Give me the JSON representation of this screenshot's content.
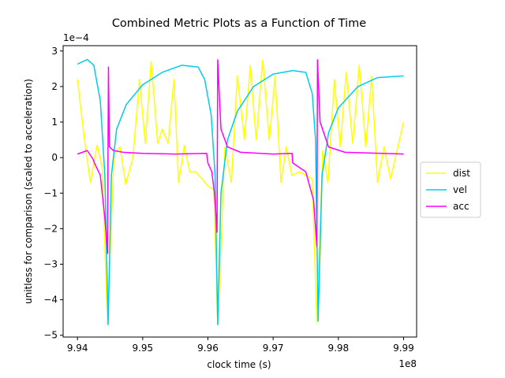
{
  "chart_data": {
    "type": "line",
    "title": "Combined Metric Plots as a Function of Time",
    "xlabel": "clock time (s)",
    "ylabel": "unitless for comparison (scaled to acceleration)",
    "x_offset_label": "1e8",
    "y_offset_label": "1e−4",
    "xlim": [
      993780000,
      999200000
    ],
    "ylim": [
      -5.05,
      3.15
    ],
    "x_ticks": [
      994000000,
      995000000,
      996000000,
      997000000,
      998000000,
      999000000
    ],
    "x_tick_labels": [
      "9.94",
      "9.95",
      "9.96",
      "9.97",
      "9.98",
      "9.99"
    ],
    "y_ticks": [
      3,
      2,
      1,
      0,
      -1,
      -2,
      -3,
      -4,
      -5
    ],
    "y_tick_labels": [
      "3",
      "2",
      "1",
      "0",
      "−1",
      "−2",
      "−3",
      "−4",
      "−5"
    ],
    "grid": false,
    "legend_placement": "center-right-outside",
    "series": [
      {
        "name": "dist",
        "color": "#ffff00",
        "points": [
          [
            994000000,
            2.2
          ],
          [
            994120000,
            0.3
          ],
          [
            994200000,
            -0.7
          ],
          [
            994300000,
            0.35
          ],
          [
            994380000,
            -0.3
          ],
          [
            994460000,
            -4.7
          ],
          [
            994560000,
            0.1
          ],
          [
            994650000,
            0.3
          ],
          [
            994740000,
            -0.75
          ],
          [
            994850000,
            0.0
          ],
          [
            994950000,
            2.2
          ],
          [
            995040000,
            0.4
          ],
          [
            995130000,
            2.7
          ],
          [
            995230000,
            0.4
          ],
          [
            995300000,
            0.8
          ],
          [
            995390000,
            0.4
          ],
          [
            995480000,
            2.2
          ],
          [
            995550000,
            -0.7
          ],
          [
            995640000,
            0.35
          ],
          [
            995720000,
            -0.4
          ],
          [
            995810000,
            -0.4
          ],
          [
            995910000,
            -0.6
          ],
          [
            996000000,
            -0.8
          ],
          [
            996090000,
            -0.9
          ],
          [
            996150000,
            -4.7
          ],
          [
            996260000,
            0.3
          ],
          [
            996360000,
            -0.7
          ],
          [
            996450000,
            2.3
          ],
          [
            996560000,
            0.5
          ],
          [
            996650000,
            2.6
          ],
          [
            996740000,
            0.5
          ],
          [
            996840000,
            2.75
          ],
          [
            996940000,
            0.5
          ],
          [
            997030000,
            2.3
          ],
          [
            997120000,
            -0.7
          ],
          [
            997200000,
            0.3
          ],
          [
            997290000,
            -0.5
          ],
          [
            997400000,
            -0.4
          ],
          [
            997500000,
            -0.5
          ],
          [
            997600000,
            -0.6
          ],
          [
            997670000,
            -4.65
          ],
          [
            997760000,
            0.2
          ],
          [
            997840000,
            -0.7
          ],
          [
            997940000,
            2.2
          ],
          [
            998030000,
            0.3
          ],
          [
            998120000,
            2.4
          ],
          [
            998220000,
            0.4
          ],
          [
            998320000,
            2.6
          ],
          [
            998420000,
            0.3
          ],
          [
            998510000,
            2.3
          ],
          [
            998600000,
            -0.7
          ],
          [
            998700000,
            0.3
          ],
          [
            998800000,
            -0.6
          ],
          [
            998900000,
            0.2
          ],
          [
            999000000,
            1.0
          ]
        ]
      },
      {
        "name": "vel",
        "color": "#00ccee",
        "points": [
          [
            994000000,
            2.63
          ],
          [
            994150000,
            2.76
          ],
          [
            994250000,
            2.6
          ],
          [
            994350000,
            1.6
          ],
          [
            994420000,
            -0.5
          ],
          [
            994470000,
            -4.7
          ],
          [
            994520000,
            -0.5
          ],
          [
            994600000,
            0.8
          ],
          [
            994750000,
            1.5
          ],
          [
            995000000,
            2.05
          ],
          [
            995300000,
            2.4
          ],
          [
            995600000,
            2.6
          ],
          [
            995850000,
            2.55
          ],
          [
            995950000,
            2.2
          ],
          [
            996050000,
            1.2
          ],
          [
            996110000,
            -0.5
          ],
          [
            996150000,
            -4.7
          ],
          [
            996200000,
            -1.0
          ],
          [
            996300000,
            0.5
          ],
          [
            996450000,
            1.3
          ],
          [
            996700000,
            2.0
          ],
          [
            997000000,
            2.35
          ],
          [
            997300000,
            2.45
          ],
          [
            997500000,
            2.4
          ],
          [
            997600000,
            1.8
          ],
          [
            997650000,
            0.5
          ],
          [
            997690000,
            -4.6
          ],
          [
            997750000,
            -0.5
          ],
          [
            997850000,
            0.7
          ],
          [
            998000000,
            1.4
          ],
          [
            998300000,
            2.0
          ],
          [
            998600000,
            2.25
          ],
          [
            999000000,
            2.3
          ]
        ]
      },
      {
        "name": "acc",
        "color": "#ff00ff",
        "points": [
          [
            994000000,
            0.1
          ],
          [
            994150000,
            0.2
          ],
          [
            994240000,
            -0.05
          ],
          [
            994260000,
            -0.15
          ],
          [
            994350000,
            -0.5
          ],
          [
            994420000,
            -1.7
          ],
          [
            994460000,
            -2.7
          ],
          [
            994475000,
            2.55
          ],
          [
            994490000,
            0.3
          ],
          [
            994550000,
            0.2
          ],
          [
            994700000,
            0.15
          ],
          [
            995000000,
            0.12
          ],
          [
            995500000,
            0.1
          ],
          [
            995980000,
            0.12
          ],
          [
            996000000,
            -0.15
          ],
          [
            996060000,
            -0.4
          ],
          [
            996100000,
            -1.0
          ],
          [
            996140000,
            -2.1
          ],
          [
            996150000,
            2.75
          ],
          [
            996200000,
            0.8
          ],
          [
            996300000,
            0.3
          ],
          [
            996500000,
            0.15
          ],
          [
            997000000,
            0.1
          ],
          [
            997290000,
            0.12
          ],
          [
            997300000,
            -0.15
          ],
          [
            997500000,
            -0.4
          ],
          [
            997620000,
            -1.2
          ],
          [
            997670000,
            -2.5
          ],
          [
            997680000,
            2.75
          ],
          [
            997720000,
            1.0
          ],
          [
            997850000,
            0.3
          ],
          [
            998100000,
            0.15
          ],
          [
            999000000,
            0.1
          ]
        ]
      }
    ]
  }
}
